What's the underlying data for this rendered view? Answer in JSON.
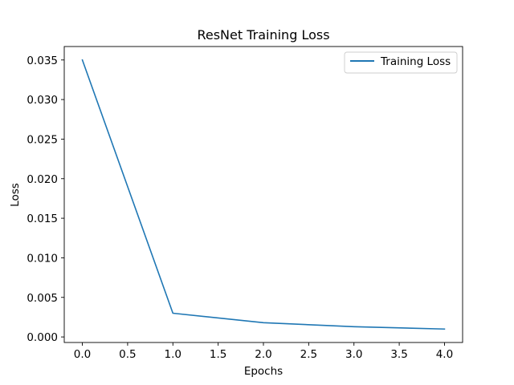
{
  "chart_data": {
    "type": "line",
    "title": "ResNet Training Loss",
    "xlabel": "Epochs",
    "ylabel": "Loss",
    "x": [
      0,
      1,
      2,
      3,
      4
    ],
    "series": [
      {
        "name": "Training Loss",
        "values": [
          0.035,
          0.003,
          0.0018,
          0.0013,
          0.001
        ],
        "color": "#1f77b4"
      }
    ],
    "xlim": [
      -0.2,
      4.2
    ],
    "ylim": [
      -0.0007,
      0.0367
    ],
    "xticks": [
      0.0,
      0.5,
      1.0,
      1.5,
      2.0,
      2.5,
      3.0,
      3.5,
      4.0
    ],
    "xtick_labels": [
      "0.0",
      "0.5",
      "1.0",
      "1.5",
      "2.0",
      "2.5",
      "3.0",
      "3.5",
      "4.0"
    ],
    "yticks": [
      0.0,
      0.005,
      0.01,
      0.015,
      0.02,
      0.025,
      0.03,
      0.035
    ],
    "ytick_labels": [
      "0.000",
      "0.005",
      "0.010",
      "0.015",
      "0.020",
      "0.025",
      "0.030",
      "0.035"
    ],
    "grid": false,
    "legend_position": "top-right"
  }
}
